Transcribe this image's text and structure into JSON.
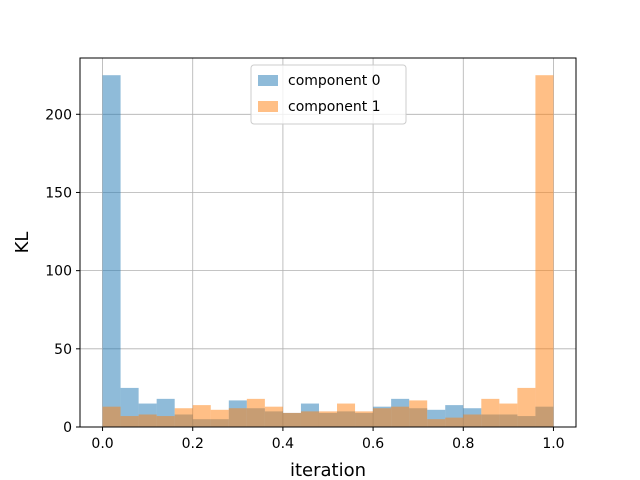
{
  "chart_data": {
    "type": "histogram",
    "xlabel": "iteration",
    "ylabel": "KL",
    "xlim": [
      -0.05,
      1.05
    ],
    "ylim": [
      0,
      236
    ],
    "xticks": [
      0.0,
      0.2,
      0.4,
      0.6,
      0.8,
      1.0
    ],
    "xtick_labels": [
      "0.0",
      "0.2",
      "0.4",
      "0.6",
      "0.8",
      "1.0"
    ],
    "yticks": [
      0,
      50,
      100,
      150,
      200
    ],
    "ytick_labels": [
      "0",
      "50",
      "100",
      "150",
      "200"
    ],
    "grid": true,
    "legend_position": "upper center",
    "bin_edges": [
      0.0,
      0.04,
      0.08,
      0.12,
      0.16,
      0.2,
      0.24,
      0.28,
      0.32,
      0.36,
      0.4,
      0.44,
      0.48,
      0.52,
      0.56,
      0.6,
      0.64,
      0.68,
      0.72,
      0.76,
      0.8,
      0.84,
      0.88,
      0.92,
      0.96,
      1.0
    ],
    "series": [
      {
        "name": "component 0",
        "color": "#1f77b4",
        "alpha": 0.5,
        "values": [
          225,
          25,
          15,
          18,
          8,
          5,
          5,
          17,
          12,
          10,
          9,
          15,
          9,
          10,
          9,
          13,
          18,
          12,
          11,
          14,
          12,
          8,
          8,
          7,
          13
        ]
      },
      {
        "name": "component 1",
        "color": "#ff7f0e",
        "alpha": 0.5,
        "values": [
          13,
          7,
          8,
          7,
          12,
          14,
          11,
          12,
          18,
          13,
          9,
          10,
          10,
          15,
          10,
          12,
          13,
          17,
          5,
          6,
          8,
          18,
          15,
          25,
          225
        ]
      }
    ]
  }
}
